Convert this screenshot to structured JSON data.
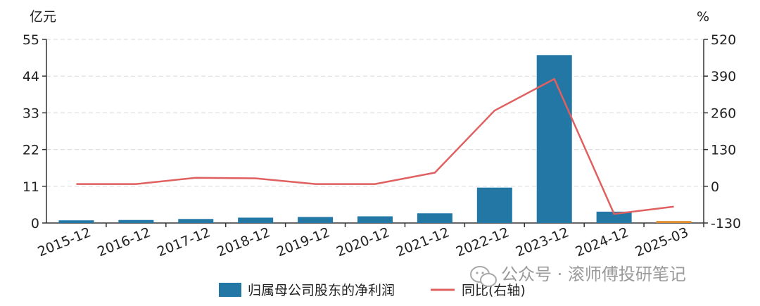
{
  "chart_data": {
    "type": "bar",
    "categories": [
      "2015-12",
      "2016-12",
      "2017-12",
      "2018-12",
      "2019-12",
      "2020-12",
      "2021-12",
      "2022-12",
      "2023-12",
      "2024-12",
      "2025-03"
    ],
    "left_axis": {
      "unit": "亿元",
      "ylim": [
        0,
        55
      ],
      "ticks": [
        0,
        11,
        22,
        33,
        44,
        55
      ]
    },
    "right_axis": {
      "unit": "%",
      "ylim": [
        -130,
        520
      ],
      "ticks": [
        -130,
        0,
        130,
        260,
        390,
        520
      ]
    },
    "series": [
      {
        "name": "归属母公司股东的净利润",
        "type": "bar",
        "axis": "left",
        "color": "#2277a4",
        "highlight_last_color": "#e08a2e",
        "values": [
          0.8,
          0.9,
          1.2,
          1.6,
          1.8,
          2.0,
          2.9,
          10.6,
          50.3,
          3.4,
          0.6
        ]
      },
      {
        "name": "同比(右轴)",
        "type": "line",
        "axis": "right",
        "color": "#e06060",
        "values": [
          8,
          8,
          30,
          28,
          8,
          8,
          48,
          268,
          380,
          -98,
          -72
        ]
      }
    ],
    "grid": true,
    "legend_position": "bottom"
  },
  "watermark": {
    "icon": "wechat-icon",
    "text": "公众号 · 滚师傅投研笔记"
  }
}
